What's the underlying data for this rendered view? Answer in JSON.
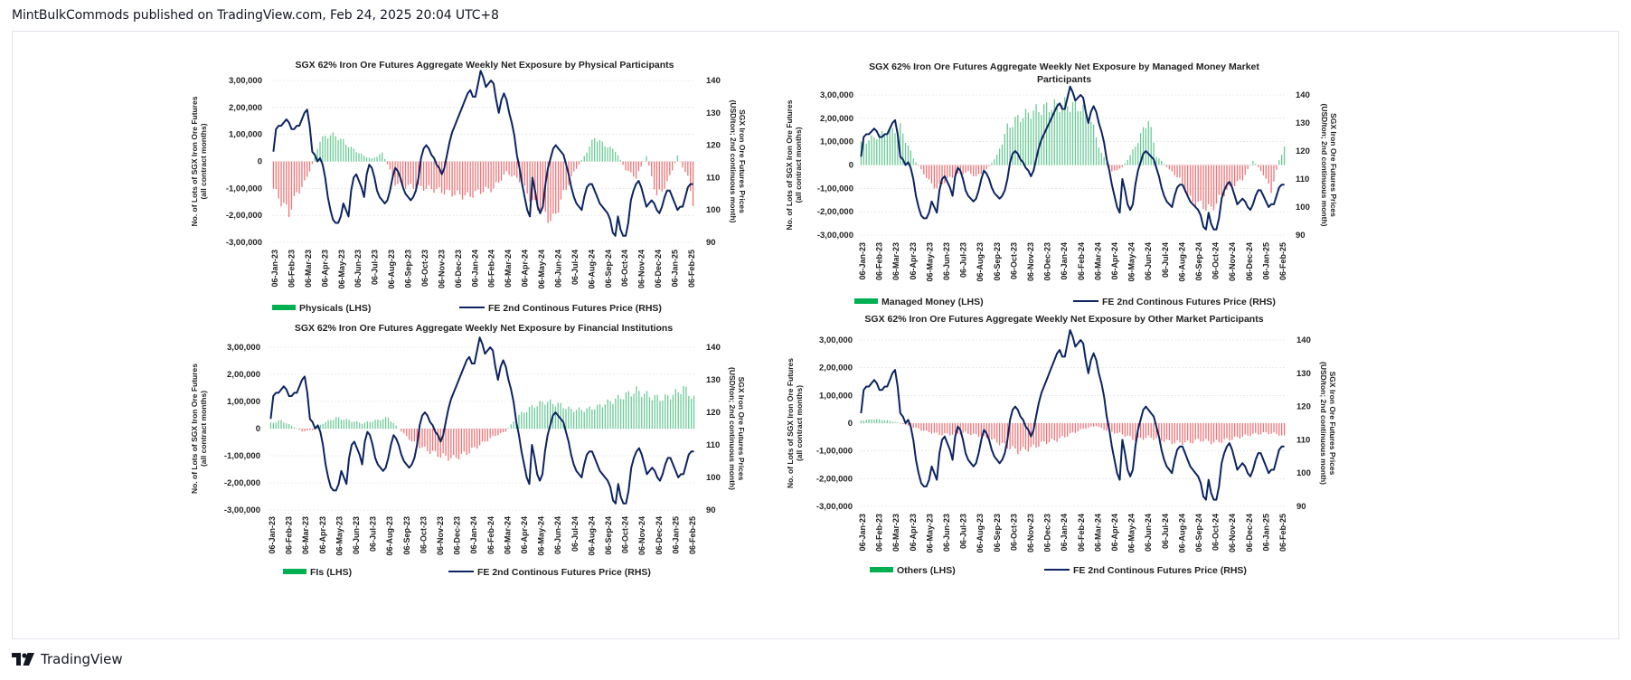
{
  "header": {
    "text": "MintBulkCommods published on TradingView.com, Feb 24, 2025 20:04 UTC+8"
  },
  "footer": {
    "brand": "TradingView"
  },
  "colors": {
    "positive": "#2db36b",
    "negative": "#e8383d",
    "price_line": "#0c2461",
    "legend_bar": "#00b050",
    "grid": "#d9d9d9"
  },
  "x_dates": [
    "06-Jan-23",
    "06-Feb-23",
    "06-Mar-23",
    "06-Apr-23",
    "06-May-23",
    "06-Jun-23",
    "06-Jul-23",
    "06-Aug-23",
    "06-Sep-23",
    "06-Oct-23",
    "06-Nov-23",
    "06-Dec-23",
    "06-Jan-24",
    "06-Feb-24",
    "06-Mar-24",
    "06-Apr-24",
    "06-May-24",
    "06-Jun-24",
    "06-Jul-24",
    "06-Aug-24",
    "06-Sep-24",
    "06-Oct-24",
    "06-Nov-24",
    "06-Dec-24",
    "06-Jan-25",
    "06-Feb-25"
  ],
  "left_ticks": [
    "3,00,000",
    "2,00,000",
    "1,00,000",
    "0",
    "-1,00,000",
    "-2,00,000",
    "-3,00,000"
  ],
  "right_ticks": [
    "140",
    "130",
    "120",
    "110",
    "100",
    "90"
  ],
  "price_series": [
    118,
    125,
    126,
    126,
    127,
    128,
    127,
    125,
    125,
    126,
    126,
    128,
    130,
    131,
    126,
    118,
    117,
    115,
    116,
    114,
    110,
    104,
    100,
    97,
    96,
    96,
    98,
    102,
    100,
    98,
    106,
    110,
    111,
    109,
    107,
    104,
    111,
    114,
    113,
    110,
    106,
    104,
    103,
    102,
    103,
    106,
    110,
    113,
    112,
    110,
    107,
    105,
    104,
    103,
    104,
    106,
    110,
    116,
    119,
    120,
    119,
    117,
    116,
    114,
    113,
    111,
    113,
    117,
    121,
    124,
    126,
    128,
    130,
    132,
    134,
    136,
    137,
    135,
    135,
    139,
    143,
    141,
    138,
    139,
    140,
    139,
    134,
    130,
    134,
    136,
    134,
    130,
    127,
    123,
    117,
    113,
    108,
    104,
    100,
    98,
    110,
    106,
    101,
    99,
    101,
    108,
    113,
    116,
    119,
    120,
    119,
    118,
    117,
    114,
    111,
    107,
    104,
    102,
    101,
    100,
    104,
    107,
    108,
    108,
    106,
    104,
    102,
    101,
    100,
    99,
    97,
    93,
    92,
    98,
    94,
    92,
    92,
    96,
    103,
    106,
    108,
    109,
    107,
    104,
    101,
    102,
    103,
    102,
    100,
    99,
    101,
    104,
    106,
    106,
    104,
    102,
    100,
    101,
    101,
    104,
    107,
    108,
    108
  ],
  "chart_data": [
    {
      "type": "bar",
      "title": "SGX 62% Iron Ore Futures Aggregate Weekly Net Exposure by Physical Participants",
      "ylabel": [
        "No. of Lots of SGX Iron Ore Futures",
        "(all contract months)"
      ],
      "y2label": [
        "SGX Iron Ore Futures Prices",
        "(USD/ton; 2nd continuous month)"
      ],
      "ylim": [
        -300000,
        300000
      ],
      "y2lim": [
        90,
        140
      ],
      "legend": {
        "bars": "Physicals (LHS)",
        "line": "FE 2nd Continous Futures Price (RHS)"
      },
      "net_exposure_anchors": [
        [
          0,
          -100000
        ],
        [
          3,
          -150000
        ],
        [
          6,
          -190000
        ],
        [
          9,
          -120000
        ],
        [
          12,
          -80000
        ],
        [
          15,
          -10000
        ],
        [
          18,
          80000
        ],
        [
          22,
          100000
        ],
        [
          25,
          90000
        ],
        [
          30,
          50000
        ],
        [
          35,
          20000
        ],
        [
          38,
          10000
        ],
        [
          42,
          30000
        ],
        [
          44,
          -10000
        ],
        [
          47,
          -80000
        ],
        [
          50,
          -90000
        ],
        [
          55,
          -95000
        ],
        [
          60,
          -100000
        ],
        [
          65,
          -110000
        ],
        [
          70,
          -120000
        ],
        [
          75,
          -130000
        ],
        [
          80,
          -110000
        ],
        [
          85,
          -100000
        ],
        [
          90,
          -40000
        ],
        [
          95,
          -70000
        ],
        [
          100,
          -150000
        ],
        [
          105,
          -200000
        ],
        [
          108,
          -220000
        ],
        [
          112,
          -120000
        ],
        [
          116,
          -40000
        ],
        [
          120,
          20000
        ],
        [
          124,
          90000
        ],
        [
          128,
          60000
        ],
        [
          132,
          40000
        ],
        [
          136,
          -30000
        ],
        [
          140,
          -60000
        ],
        [
          144,
          20000
        ],
        [
          148,
          -130000
        ],
        [
          152,
          -80000
        ],
        [
          156,
          20000
        ],
        [
          160,
          -60000
        ],
        [
          162,
          -150000
        ]
      ]
    },
    {
      "type": "bar",
      "title": "SGX 62% Iron Ore Futures Aggregate Weekly Net Exposure by Managed Money Market Participants",
      "ylabel": [
        "No. of Lots of SGX Iron Ore Futures",
        "(all contract months)"
      ],
      "y2label": [
        "SGX Iron Ore Futures Prices",
        "(USD/ton; 2nd continuous month)"
      ],
      "ylim": [
        -300000,
        300000
      ],
      "y2lim": [
        90,
        140
      ],
      "legend": {
        "bars": "Managed Money (LHS)",
        "line": "FE 2nd Continous Futures Price (RHS)"
      },
      "net_exposure_anchors": [
        [
          0,
          90000
        ],
        [
          5,
          120000
        ],
        [
          10,
          140000
        ],
        [
          15,
          160000
        ],
        [
          20,
          30000
        ],
        [
          23,
          -20000
        ],
        [
          26,
          -70000
        ],
        [
          29,
          -100000
        ],
        [
          33,
          -60000
        ],
        [
          37,
          -40000
        ],
        [
          41,
          -30000
        ],
        [
          44,
          -50000
        ],
        [
          48,
          -20000
        ],
        [
          52,
          40000
        ],
        [
          56,
          160000
        ],
        [
          60,
          200000
        ],
        [
          66,
          230000
        ],
        [
          72,
          250000
        ],
        [
          78,
          260000
        ],
        [
          84,
          250000
        ],
        [
          88,
          190000
        ],
        [
          92,
          50000
        ],
        [
          96,
          -30000
        ],
        [
          100,
          -10000
        ],
        [
          104,
          60000
        ],
        [
          108,
          150000
        ],
        [
          110,
          200000
        ],
        [
          113,
          40000
        ],
        [
          118,
          -20000
        ],
        [
          122,
          -60000
        ],
        [
          126,
          -150000
        ],
        [
          130,
          -170000
        ],
        [
          134,
          -190000
        ],
        [
          138,
          -130000
        ],
        [
          142,
          -90000
        ],
        [
          146,
          -60000
        ],
        [
          150,
          20000
        ],
        [
          154,
          -40000
        ],
        [
          157,
          -110000
        ],
        [
          160,
          20000
        ],
        [
          162,
          80000
        ]
      ]
    },
    {
      "type": "bar",
      "title": "SGX 62% Iron Ore Futures Aggregate Weekly Net Exposure by Financial Institutions",
      "ylabel": [
        "No. of Lots of SGX Iron Ore Futures",
        "(all contract months)"
      ],
      "y2label": [
        "SGX Iron Ore Futures Prices",
        "(USD/ton; 2nd continuous month)"
      ],
      "ylim": [
        -300000,
        300000
      ],
      "y2lim": [
        90,
        140
      ],
      "legend": {
        "bars": "FIs (LHS)",
        "line": "FE 2nd Continous Futures Price (RHS)"
      },
      "net_exposure_anchors": [
        [
          0,
          20000
        ],
        [
          4,
          30000
        ],
        [
          8,
          10000
        ],
        [
          12,
          -10000
        ],
        [
          16,
          -5000
        ],
        [
          20,
          20000
        ],
        [
          25,
          40000
        ],
        [
          30,
          30000
        ],
        [
          35,
          20000
        ],
        [
          40,
          30000
        ],
        [
          45,
          40000
        ],
        [
          48,
          10000
        ],
        [
          52,
          -30000
        ],
        [
          56,
          -60000
        ],
        [
          60,
          -80000
        ],
        [
          65,
          -100000
        ],
        [
          70,
          -110000
        ],
        [
          75,
          -90000
        ],
        [
          80,
          -60000
        ],
        [
          85,
          -30000
        ],
        [
          90,
          -10000
        ],
        [
          95,
          50000
        ],
        [
          100,
          80000
        ],
        [
          105,
          100000
        ],
        [
          110,
          90000
        ],
        [
          115,
          70000
        ],
        [
          120,
          70000
        ],
        [
          125,
          80000
        ],
        [
          130,
          100000
        ],
        [
          135,
          120000
        ],
        [
          140,
          140000
        ],
        [
          145,
          120000
        ],
        [
          150,
          110000
        ],
        [
          155,
          130000
        ],
        [
          158,
          150000
        ],
        [
          162,
          110000
        ]
      ]
    },
    {
      "type": "bar",
      "title": "SGX 62% Iron Ore Futures Aggregate Weekly Net Exposure by Other Market Participants",
      "ylabel": [
        "No. of Lots of SGX Iron Ore Futures",
        "(all contract months)"
      ],
      "y2label": [
        "SGX Iron Ore Futures Prices",
        "(USD/ton; 2nd continuous month)"
      ],
      "ylim": [
        -300000,
        300000
      ],
      "y2lim": [
        90,
        140
      ],
      "legend": {
        "bars": "Others (LHS)",
        "line": "FE 2nd Continous Futures Price (RHS)"
      },
      "net_exposure_anchors": [
        [
          0,
          10000
        ],
        [
          5,
          15000
        ],
        [
          10,
          10000
        ],
        [
          15,
          0
        ],
        [
          20,
          -15000
        ],
        [
          25,
          -30000
        ],
        [
          30,
          -40000
        ],
        [
          35,
          -40000
        ],
        [
          40,
          -35000
        ],
        [
          45,
          -45000
        ],
        [
          50,
          -60000
        ],
        [
          55,
          -80000
        ],
        [
          60,
          -100000
        ],
        [
          65,
          -90000
        ],
        [
          70,
          -70000
        ],
        [
          75,
          -60000
        ],
        [
          80,
          -40000
        ],
        [
          85,
          -20000
        ],
        [
          90,
          -10000
        ],
        [
          95,
          -30000
        ],
        [
          100,
          -40000
        ],
        [
          105,
          -60000
        ],
        [
          110,
          -50000
        ],
        [
          115,
          -60000
        ],
        [
          120,
          -70000
        ],
        [
          125,
          -70000
        ],
        [
          130,
          -60000
        ],
        [
          135,
          -70000
        ],
        [
          140,
          -60000
        ],
        [
          145,
          -50000
        ],
        [
          150,
          -40000
        ],
        [
          155,
          -35000
        ],
        [
          160,
          -40000
        ],
        [
          162,
          -50000
        ]
      ]
    }
  ]
}
